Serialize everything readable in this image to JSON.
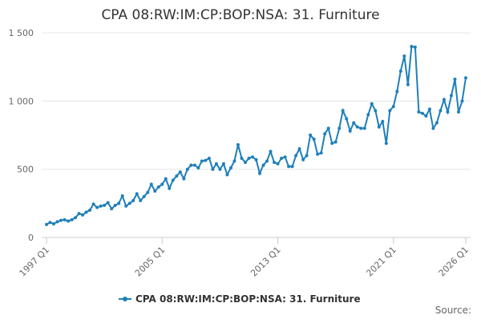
{
  "chart_data": {
    "type": "line",
    "title": "CPA 08:RW:IM:CP:BOP:NSA: 31. Furniture",
    "source": "Source:",
    "categories": [
      "1997 Q1",
      null,
      null,
      null,
      null,
      null,
      null,
      null,
      null,
      null,
      null,
      null,
      null,
      null,
      null,
      null,
      null,
      null,
      null,
      null,
      null,
      null,
      null,
      null,
      null,
      null,
      null,
      null,
      null,
      null,
      null,
      null,
      "2005 Q1",
      null,
      null,
      null,
      null,
      null,
      null,
      null,
      null,
      null,
      null,
      null,
      null,
      null,
      null,
      null,
      null,
      null,
      null,
      null,
      null,
      null,
      null,
      null,
      null,
      null,
      null,
      null,
      null,
      null,
      null,
      null,
      "2013 Q1",
      null,
      null,
      null,
      null,
      null,
      null,
      null,
      null,
      null,
      null,
      null,
      null,
      null,
      null,
      null,
      null,
      null,
      null,
      null,
      null,
      null,
      null,
      null,
      null,
      null,
      null,
      null,
      null,
      null,
      null,
      null,
      "2021 Q1",
      null,
      null,
      null,
      null,
      null,
      null,
      null,
      null,
      null,
      null,
      null,
      null,
      null,
      null,
      null,
      null,
      null,
      null,
      null,
      "2026 Q1"
    ],
    "series": [
      {
        "name": "CPA 08:RW:IM:CP:BOP:NSA: 31. Furniture",
        "color": "#1f7fba",
        "values": [
          95,
          110,
          100,
          115,
          125,
          130,
          120,
          130,
          145,
          175,
          165,
          185,
          200,
          245,
          220,
          230,
          235,
          255,
          210,
          235,
          250,
          305,
          230,
          250,
          270,
          320,
          270,
          300,
          330,
          390,
          340,
          370,
          390,
          430,
          360,
          420,
          450,
          480,
          430,
          500,
          530,
          530,
          510,
          560,
          565,
          580,
          500,
          540,
          500,
          540,
          460,
          510,
          560,
          680,
          580,
          550,
          580,
          590,
          570,
          470,
          530,
          560,
          630,
          550,
          540,
          580,
          590,
          520,
          520,
          600,
          650,
          570,
          600,
          750,
          720,
          610,
          620,
          760,
          800,
          690,
          700,
          800,
          930,
          870,
          780,
          840,
          810,
          800,
          800,
          900,
          980,
          930,
          810,
          850,
          690,
          930,
          960,
          1070,
          1220,
          1330,
          1120,
          1400,
          1395,
          920,
          910,
          890,
          940,
          800,
          840,
          930,
          1010,
          920,
          1040,
          1160,
          920,
          1000,
          1170
        ]
      }
    ],
    "ylim": [
      0,
      1600
    ],
    "yticks": [
      0,
      500,
      {
        "value": 1000,
        "label": "1 000"
      },
      {
        "value": 1500,
        "label": "1 500"
      }
    ],
    "grid": true
  }
}
